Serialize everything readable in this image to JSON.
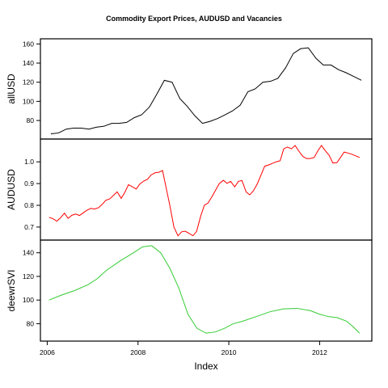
{
  "chart_data": {
    "type": "line",
    "title": "Commodity Export Prices, AUDUSD and Vacancies",
    "xlabel": "Index",
    "xlim": [
      2005.85,
      2013.15
    ],
    "x_ticks": [
      2006,
      2008,
      2010,
      2012
    ],
    "x_tick_labels": [
      "2006",
      "2008",
      "2010",
      "2012"
    ],
    "grid": false,
    "panels": [
      {
        "ylabel": "allUSD",
        "color": "#000000",
        "ylim": [
          64,
          162
        ],
        "y_ticks": [
          80,
          100,
          120,
          140,
          160
        ],
        "y_tick_labels": [
          "80",
          "100",
          "120",
          "140",
          "160"
        ],
        "series": {
          "x": [
            2006.08,
            2006.25,
            2006.42,
            2006.58,
            2006.75,
            2006.92,
            2007.08,
            2007.25,
            2007.42,
            2007.58,
            2007.75,
            2007.92,
            2008.08,
            2008.25,
            2008.42,
            2008.58,
            2008.75,
            2008.92,
            2009.08,
            2009.25,
            2009.42,
            2009.58,
            2009.75,
            2009.92,
            2010.08,
            2010.25,
            2010.42,
            2010.58,
            2010.75,
            2010.92,
            2011.08,
            2011.25,
            2011.42,
            2011.58,
            2011.75,
            2011.92,
            2012.08,
            2012.25,
            2012.42,
            2012.58,
            2012.75,
            2012.92
          ],
          "y": [
            66,
            67,
            71,
            72,
            72,
            71,
            73,
            74,
            77,
            77,
            78,
            83,
            86,
            94,
            108,
            122,
            120,
            103,
            95,
            85,
            77,
            79,
            82,
            86,
            90,
            96,
            110,
            113,
            120,
            121,
            124,
            135,
            150,
            155,
            156,
            145,
            138,
            138,
            133,
            130,
            126,
            122
          ]
        }
      },
      {
        "ylabel": "AUDUSD",
        "color": "#ff0000",
        "ylim": [
          0.655,
          1.09
        ],
        "y_ticks": [
          0.7,
          0.8,
          0.9,
          1.0
        ],
        "y_tick_labels": [
          "0.7",
          "0.8",
          "0.9",
          "1.0"
        ],
        "series": {
          "x": [
            2006.04,
            2006.13,
            2006.21,
            2006.29,
            2006.38,
            2006.46,
            2006.54,
            2006.63,
            2006.71,
            2006.79,
            2006.88,
            2006.96,
            2007.04,
            2007.13,
            2007.21,
            2007.29,
            2007.38,
            2007.46,
            2007.54,
            2007.63,
            2007.71,
            2007.79,
            2007.88,
            2007.96,
            2008.04,
            2008.13,
            2008.21,
            2008.29,
            2008.38,
            2008.46,
            2008.54,
            2008.63,
            2008.71,
            2008.79,
            2008.88,
            2008.96,
            2009.04,
            2009.13,
            2009.21,
            2009.29,
            2009.38,
            2009.46,
            2009.54,
            2009.63,
            2009.71,
            2009.79,
            2009.88,
            2009.96,
            2010.04,
            2010.13,
            2010.21,
            2010.29,
            2010.38,
            2010.46,
            2010.54,
            2010.63,
            2010.71,
            2010.79,
            2010.88,
            2010.96,
            2011.04,
            2011.13,
            2011.21,
            2011.29,
            2011.38,
            2011.46,
            2011.54,
            2011.63,
            2011.71,
            2011.79,
            2011.88,
            2011.96,
            2012.04,
            2012.13,
            2012.21,
            2012.29,
            2012.38,
            2012.46,
            2012.54,
            2012.63,
            2012.71,
            2012.79,
            2012.88
          ],
          "y": [
            0.745,
            0.738,
            0.727,
            0.742,
            0.764,
            0.74,
            0.754,
            0.76,
            0.753,
            0.765,
            0.778,
            0.786,
            0.783,
            0.789,
            0.804,
            0.823,
            0.83,
            0.846,
            0.862,
            0.832,
            0.86,
            0.895,
            0.885,
            0.875,
            0.898,
            0.912,
            0.92,
            0.94,
            0.95,
            0.952,
            0.96,
            0.87,
            0.79,
            0.7,
            0.66,
            0.678,
            0.681,
            0.67,
            0.66,
            0.68,
            0.75,
            0.8,
            0.81,
            0.84,
            0.87,
            0.9,
            0.915,
            0.901,
            0.91,
            0.885,
            0.91,
            0.914,
            0.862,
            0.848,
            0.866,
            0.9,
            0.94,
            0.98,
            0.986,
            0.993,
            1.0,
            1.005,
            1.06,
            1.068,
            1.06,
            1.075,
            1.05,
            1.025,
            1.015,
            1.015,
            1.02,
            1.05,
            1.075,
            1.05,
            1.03,
            0.995,
            0.996,
            1.02,
            1.045,
            1.04,
            1.035,
            1.028,
            1.02
          ]
        }
      },
      {
        "ylabel": "deewrSVI",
        "color": "#33cc33",
        "ylim": [
          68,
          148
        ],
        "y_ticks": [
          80,
          100,
          120,
          140
        ],
        "y_tick_labels": [
          "80",
          "100",
          "120",
          "140"
        ],
        "series": {
          "x": [
            2006.04,
            2006.3,
            2006.6,
            2006.9,
            2007.1,
            2007.3,
            2007.6,
            2007.9,
            2008.1,
            2008.3,
            2008.5,
            2008.7,
            2008.9,
            2009.1,
            2009.3,
            2009.5,
            2009.7,
            2009.9,
            2010.1,
            2010.3,
            2010.6,
            2010.9,
            2011.2,
            2011.5,
            2011.8,
            2012.0,
            2012.2,
            2012.4,
            2012.6,
            2012.75,
            2012.88
          ],
          "y": [
            100,
            104,
            108,
            113,
            118,
            125,
            133,
            140,
            145,
            146,
            140,
            127,
            110,
            88,
            76,
            72,
            73,
            76,
            80,
            82,
            86,
            90,
            92.5,
            93,
            91,
            88,
            86,
            85,
            82,
            77,
            72
          ]
        }
      }
    ]
  }
}
